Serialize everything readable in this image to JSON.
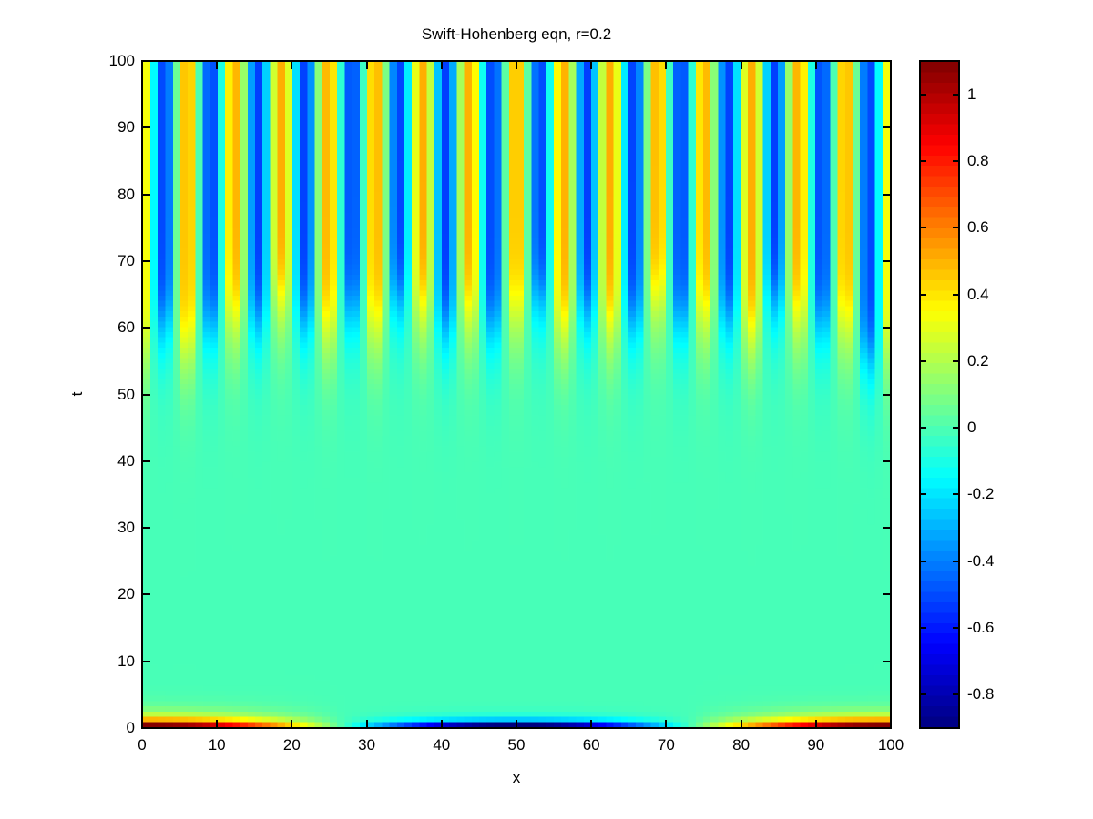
{
  "chart_data": {
    "type": "heatmap",
    "title": "Swift-Hohenberg eqn, r=0.2",
    "xlabel": "x",
    "ylabel": "t",
    "x_range": [
      0,
      100
    ],
    "y_range": [
      0,
      100
    ],
    "x_ticks": [
      0,
      10,
      20,
      30,
      40,
      50,
      60,
      70,
      80,
      90,
      100
    ],
    "y_ticks": [
      0,
      10,
      20,
      30,
      40,
      50,
      60,
      70,
      80,
      90,
      100
    ],
    "colormap": "jet",
    "grid_on": false,
    "colorbar": {
      "position": "right",
      "vmin": -0.9,
      "vmax": 1.1,
      "levels": 64,
      "tick_values": [
        1,
        0.8,
        0.6,
        0.4,
        0.2,
        0,
        -0.2,
        -0.4,
        -0.6,
        -0.8
      ],
      "tick_labels": [
        "1",
        "0.8",
        "0.6",
        "0.4",
        "0.2",
        "0",
        "-0.2",
        "-0.4",
        "-0.6",
        "-0.8"
      ]
    },
    "grid": {
      "nx": 100,
      "nt": 128
    },
    "field_model": {
      "description": "u(x,t): decaying initial profile u(x,0)=0.1+cos(2*pi*x/99) (max 1.1 at edges, min -0.9 at x=50), near-zero plateau for t~5-45, then growth of a striped pattern A*cos(k(x-49.5)) with ~16 wavelengths, saturating at amplitude ~0.52 by t~70",
      "stripe_k": 0.99829,
      "stripe_center": 49.5,
      "stripe_amp": 0.52,
      "onset_t0": 63.5,
      "onset_rate": 0.42,
      "edge_advance": 5.5,
      "edge_scale": 5,
      "jitter1_amp": 1.6,
      "jitter1_freq": 2.3897,
      "jitter2_amp": 1.1,
      "jitter2_freq": 1.131,
      "jitter2_phase": 0.7,
      "tongue_amp": 0.07,
      "tongue_rate": 0.35,
      "tongue_lead": 9,
      "tongue_pos_weight": 0.75,
      "ic_offset": 0.1,
      "ic_period": 99,
      "ic_decay_pos": 1.0,
      "ic_decay_neg": 1.7,
      "background": -0.01
    }
  }
}
